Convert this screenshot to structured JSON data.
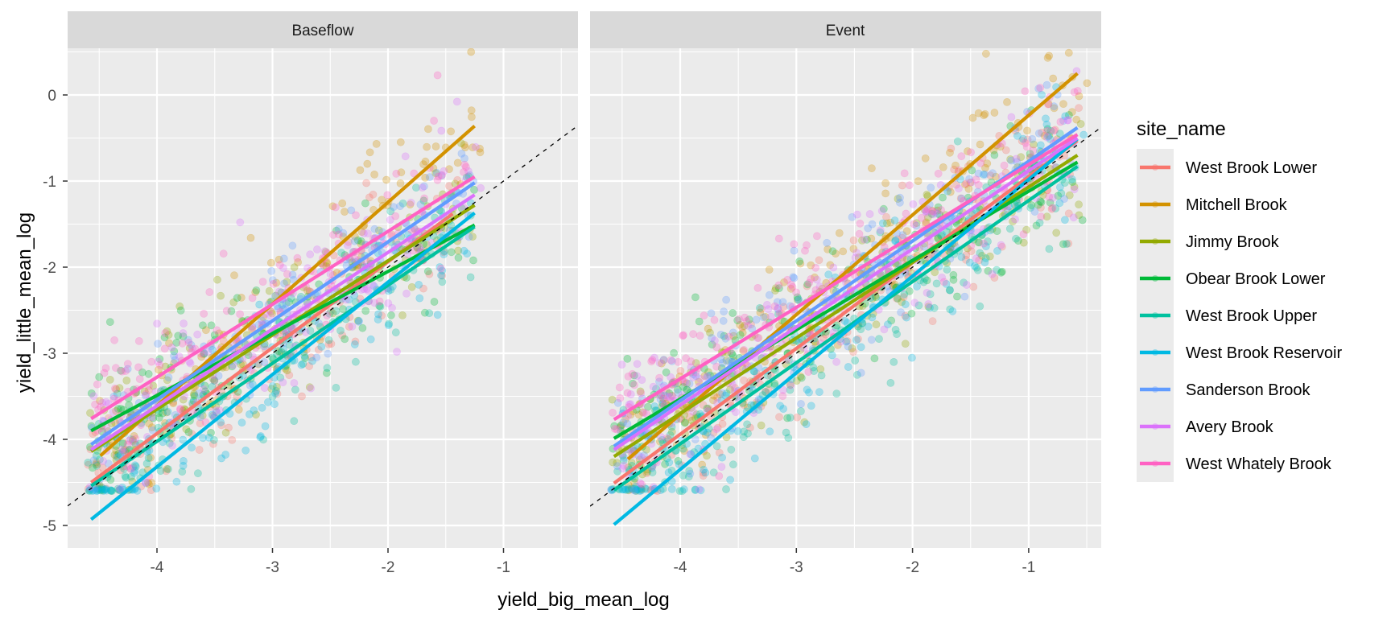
{
  "chart_data": {
    "type": "scatter",
    "facet_by": "flow type",
    "xlabel": "yield_big_mean_log",
    "ylabel": "yield_little_mean_log",
    "xlim": [
      -4.77,
      -0.36
    ],
    "ylim": [
      -5.32,
      0.55
    ],
    "x_ticks": [
      -4,
      -3,
      -2,
      -1
    ],
    "x_tick_labels": [
      "-4",
      "-3",
      "-2",
      "-1"
    ],
    "y_ticks": [
      0,
      -1,
      -2,
      -3,
      -4,
      -5
    ],
    "y_tick_labels": [
      "0",
      "-1",
      "-2",
      "-3",
      "-4",
      "-5"
    ],
    "grid": true,
    "reference_line": {
      "type": "dashed",
      "slope": 1,
      "intercept": 0,
      "color": "#000000"
    },
    "legend": {
      "title": "site_name",
      "placement": "right"
    },
    "series": [
      {
        "name": "West Brook Lower",
        "color": "#F8766D"
      },
      {
        "name": "Mitchell Brook",
        "color": "#D39200"
      },
      {
        "name": "Jimmy Brook",
        "color": "#93AA00"
      },
      {
        "name": "Obear Brook Lower",
        "color": "#00BA38"
      },
      {
        "name": "West Brook Upper",
        "color": "#00C19F"
      },
      {
        "name": "West Brook Reservoir",
        "color": "#00B9E3"
      },
      {
        "name": "Sanderson Brook",
        "color": "#619CFF"
      },
      {
        "name": "Avery Brook",
        "color": "#DB72FB"
      },
      {
        "name": "West Whately Brook",
        "color": "#FF61C3"
      }
    ],
    "panels": [
      {
        "title": "Baseflow",
        "fit_lines": [
          {
            "series": "West Brook Lower",
            "x": [
              -4.57,
              -1.44
            ],
            "y": [
              -4.5,
              -1.38
            ]
          },
          {
            "series": "Mitchell Brook",
            "x": [
              -4.49,
              -1.25
            ],
            "y": [
              -4.19,
              -0.36
            ]
          },
          {
            "series": "Jimmy Brook",
            "x": [
              -4.57,
              -1.25
            ],
            "y": [
              -4.14,
              -1.28
            ]
          },
          {
            "series": "Obear Brook Lower",
            "x": [
              -4.57,
              -1.25
            ],
            "y": [
              -3.9,
              -1.51
            ]
          },
          {
            "series": "West Brook Upper",
            "x": [
              -4.57,
              -1.25
            ],
            "y": [
              -4.54,
              -1.53
            ]
          },
          {
            "series": "West Brook Reservoir",
            "x": [
              -4.57,
              -1.25
            ],
            "y": [
              -4.93,
              -1.37
            ]
          },
          {
            "series": "Sanderson Brook",
            "x": [
              -4.57,
              -1.25
            ],
            "y": [
              -4.06,
              -1.02
            ]
          },
          {
            "series": "Avery Brook",
            "x": [
              -4.57,
              -1.25
            ],
            "y": [
              -4.12,
              -1.16
            ]
          },
          {
            "series": "West Whately Brook",
            "x": [
              -4.57,
              -1.25
            ],
            "y": [
              -3.76,
              -0.95
            ]
          }
        ],
        "points_per_series": 140,
        "point_spread_sd": 0.38,
        "y_floor": -4.6
      },
      {
        "title": "Event",
        "fit_lines": [
          {
            "series": "West Brook Lower",
            "x": [
              -4.57,
              -0.58
            ],
            "y": [
              -4.51,
              -0.53
            ]
          },
          {
            "series": "Mitchell Brook",
            "x": [
              -4.45,
              -0.58
            ],
            "y": [
              -4.23,
              0.25
            ]
          },
          {
            "series": "Jimmy Brook",
            "x": [
              -4.57,
              -0.58
            ],
            "y": [
              -4.2,
              -0.7
            ]
          },
          {
            "series": "Obear Brook Lower",
            "x": [
              -4.57,
              -0.58
            ],
            "y": [
              -3.99,
              -0.78
            ]
          },
          {
            "series": "West Brook Upper",
            "x": [
              -4.57,
              -0.58
            ],
            "y": [
              -4.59,
              -0.83
            ]
          },
          {
            "series": "West Brook Reservoir",
            "x": [
              -4.57,
              -0.58
            ],
            "y": [
              -4.99,
              -0.51
            ]
          },
          {
            "series": "Sanderson Brook",
            "x": [
              -4.57,
              -0.58
            ],
            "y": [
              -4.08,
              -0.38
            ]
          },
          {
            "series": "Avery Brook",
            "x": [
              -4.57,
              -0.58
            ],
            "y": [
              -4.12,
              -0.5
            ]
          },
          {
            "series": "West Whately Brook",
            "x": [
              -4.57,
              -0.58
            ],
            "y": [
              -3.77,
              -0.46
            ]
          }
        ],
        "points_per_series": 170,
        "point_spread_sd": 0.4,
        "y_floor": -4.6
      }
    ]
  }
}
